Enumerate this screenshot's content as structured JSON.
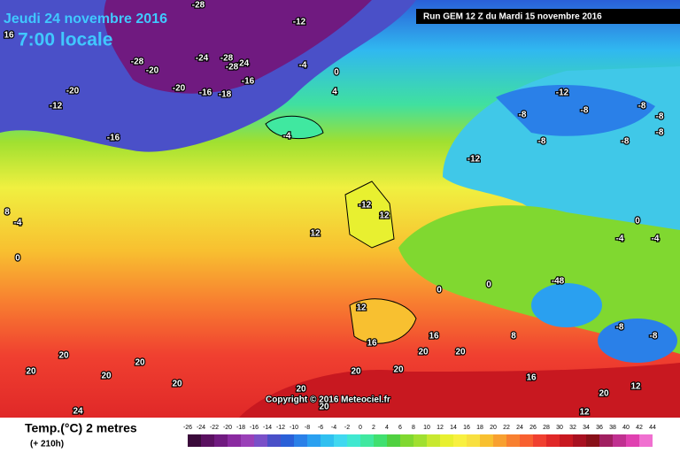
{
  "header": {
    "date": "Jeudi 24 novembre 2016",
    "time": "7:00 locale",
    "run": "Run GEM 12 Z du Mardi 15 novembre 2016"
  },
  "footer": {
    "variable": "Temp.(°C) 2 metres",
    "lead": "(+ 210h)",
    "copyright": "Copyright © 2016 Meteociel.fr"
  },
  "colorbar": {
    "ticks": [
      -26,
      -24,
      -22,
      -20,
      -18,
      -16,
      -14,
      -12,
      -10,
      -8,
      -6,
      -4,
      -2,
      0,
      2,
      4,
      6,
      8,
      10,
      12,
      14,
      16,
      18,
      20,
      22,
      24,
      26,
      28,
      30,
      32,
      34,
      36,
      38,
      40,
      42,
      44
    ],
    "colors": [
      "#3a0a3a",
      "#5a1060",
      "#701a80",
      "#8a2aa0",
      "#9a40b8",
      "#7a50c8",
      "#4a50c8",
      "#2a60d8",
      "#2a80e8",
      "#2aa0f0",
      "#30c0f0",
      "#40d8f0",
      "#40e8d0",
      "#40e8a0",
      "#40e070",
      "#50d040",
      "#80d830",
      "#a0e030",
      "#c8e830",
      "#e8f030",
      "#f8f040",
      "#f8e040",
      "#f8c030",
      "#f8a030",
      "#f88030",
      "#f86030",
      "#f04030",
      "#e02828",
      "#c81820",
      "#a81020",
      "#881018",
      "#a02060",
      "#c03090",
      "#e040b0",
      "#f070d0"
    ]
  },
  "map_labels": [
    -12,
    -28,
    -28,
    -20,
    -24,
    -28,
    -24,
    -28,
    -20,
    -16,
    -18,
    -16,
    -4,
    0,
    4,
    -20,
    -12,
    -16,
    -4,
    -12,
    -8,
    -8,
    -12,
    -8,
    12,
    12,
    -12,
    0,
    12,
    -48,
    0,
    0,
    16,
    20,
    20,
    20,
    20,
    20,
    20,
    24,
    20,
    12,
    12,
    16,
    20,
    20,
    16,
    20,
    20,
    8,
    -8,
    -8,
    0,
    -4,
    -4,
    -8,
    -8,
    -8,
    -8,
    16,
    8,
    -4,
    20
  ]
}
